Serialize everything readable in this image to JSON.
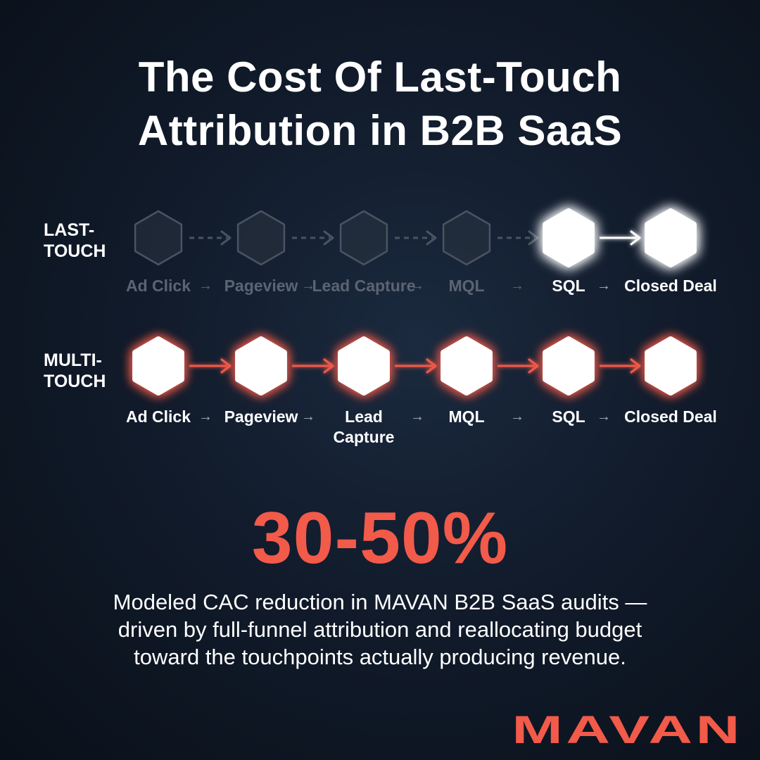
{
  "title": {
    "line1": "The Cost Of Last-Touch",
    "line2": "Attribution in B2B SaaS"
  },
  "rows": [
    {
      "id": "last-touch",
      "label_line1": "LAST-",
      "label_line2": "TOUCH",
      "stages": [
        {
          "label": "Ad Click",
          "active": false
        },
        {
          "label": "Pageview",
          "active": false
        },
        {
          "label": "Lead Capture",
          "active": false
        },
        {
          "label": "MQL",
          "active": false
        },
        {
          "label": "SQL",
          "active": true
        },
        {
          "label": "Closed Deal",
          "active": true
        }
      ],
      "arrow_glyph": "→"
    },
    {
      "id": "multi-touch",
      "label_line1": "MULTI-",
      "label_line2": "TOUCH",
      "stages": [
        {
          "label": "Ad Click",
          "active": true
        },
        {
          "label": "Pageview",
          "active": true
        },
        {
          "label": "Lead Capture",
          "active": true
        },
        {
          "label": "MQL",
          "active": true
        },
        {
          "label": "SQL",
          "active": true
        },
        {
          "label": "Closed Deal",
          "active": true
        }
      ],
      "arrow_glyph": "→"
    }
  ],
  "stat": "30-50%",
  "description": {
    "line1": "Modeled CAC reduction in MAVAN B2B SaaS audits —",
    "line2": "driven by full-funnel attribution and reallocating budget",
    "line3": "toward the touchpoints actually producing revenue."
  },
  "logo": "MAVAN",
  "colors": {
    "accent": "#f25a4a",
    "node_active": "#ffffff",
    "node_inactive": "#2a3340",
    "dim_text": "#5b6473"
  }
}
